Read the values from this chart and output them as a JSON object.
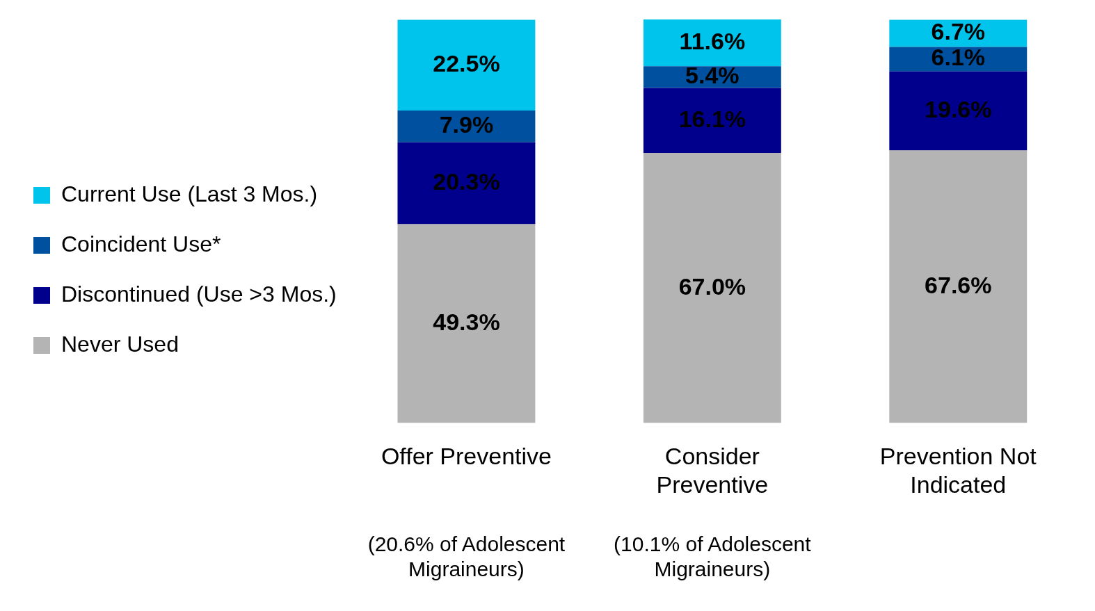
{
  "chart_data": {
    "type": "bar",
    "stacked": true,
    "legend": "left",
    "categories": [
      "Offer Preventive",
      "Consider Preventive",
      "Prevention Not Indicated"
    ],
    "series": [
      {
        "name": "Never Used",
        "color": "#b4b4b4",
        "values": [
          49.3,
          67.0,
          67.6
        ],
        "value_labels": [
          "49.3%",
          "67.0%",
          "67.6%"
        ]
      },
      {
        "name": "Discontinued (Use >3 Mos.)",
        "color": "#00008c",
        "values": [
          20.3,
          16.1,
          19.6
        ],
        "value_labels": [
          "20.3%",
          "16.1%",
          "19.6%"
        ]
      },
      {
        "name": "Coincident Use*",
        "color": "#0050a0",
        "values": [
          7.9,
          5.4,
          6.1
        ],
        "value_labels": [
          "7.9%",
          "5.4%",
          "6.1%"
        ]
      },
      {
        "name": "Current Use (Last 3 Mos.)",
        "color": "#00c4ec",
        "values": [
          22.5,
          11.6,
          6.7
        ],
        "value_labels": [
          "22.5%",
          "11.6%",
          "6.7%"
        ]
      }
    ],
    "annotations": [
      "(20.6% of Adolescent Migraineurs)",
      "(10.1% of Adolescent Migraineurs)"
    ]
  }
}
